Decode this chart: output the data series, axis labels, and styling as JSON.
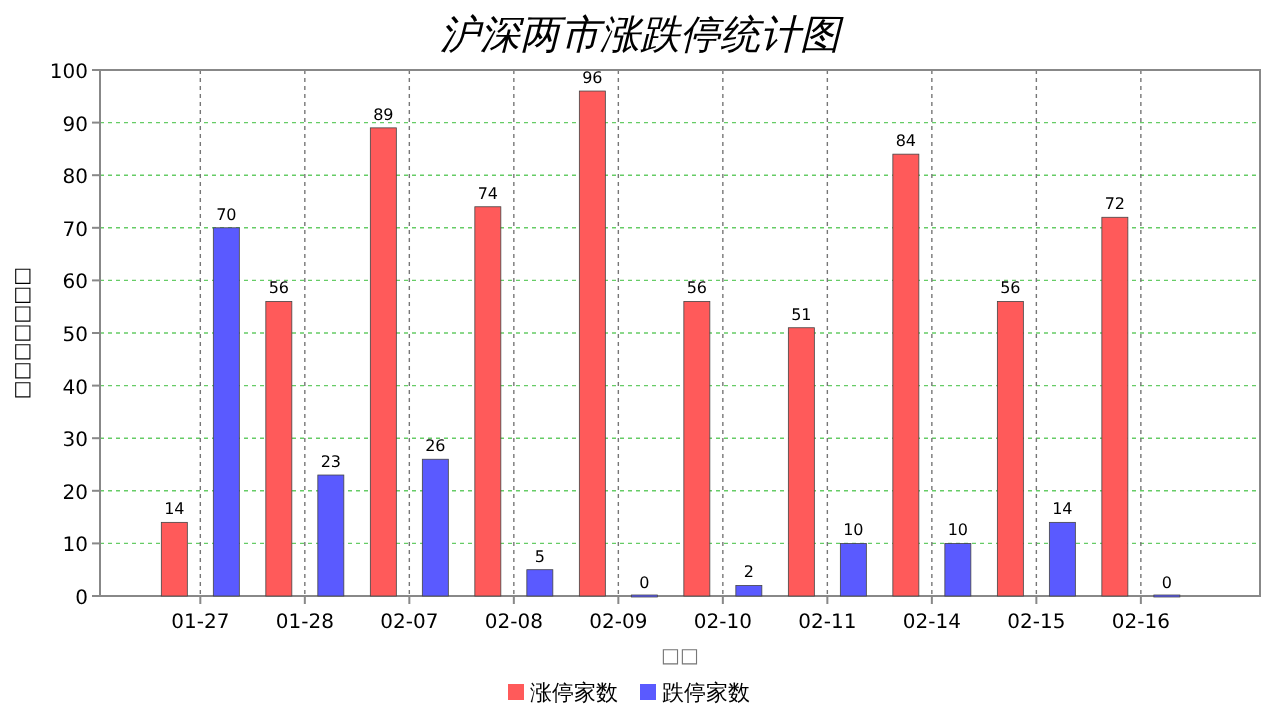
{
  "chart_data": {
    "type": "bar",
    "title": "沪深两市涨跌停统计图",
    "xlabel": "□□",
    "ylabel": "□□□□□□□",
    "categories": [
      "01-27",
      "01-28",
      "02-07",
      "02-08",
      "02-09",
      "02-10",
      "02-11",
      "02-14",
      "02-15",
      "02-16"
    ],
    "series": [
      {
        "name": "涨停家数",
        "color": "#ff5a5a",
        "values": [
          14,
          56,
          89,
          74,
          96,
          56,
          51,
          84,
          56,
          72
        ]
      },
      {
        "name": "跌停家数",
        "color": "#5a5aff",
        "values": [
          70,
          23,
          26,
          5,
          0,
          2,
          10,
          10,
          14,
          0
        ]
      }
    ],
    "ylim": [
      0,
      100
    ],
    "yticks": [
      0,
      10,
      20,
      30,
      40,
      50,
      60,
      70,
      80,
      90,
      100
    ],
    "grid": true,
    "data_labels": true,
    "legend": "bottom"
  }
}
